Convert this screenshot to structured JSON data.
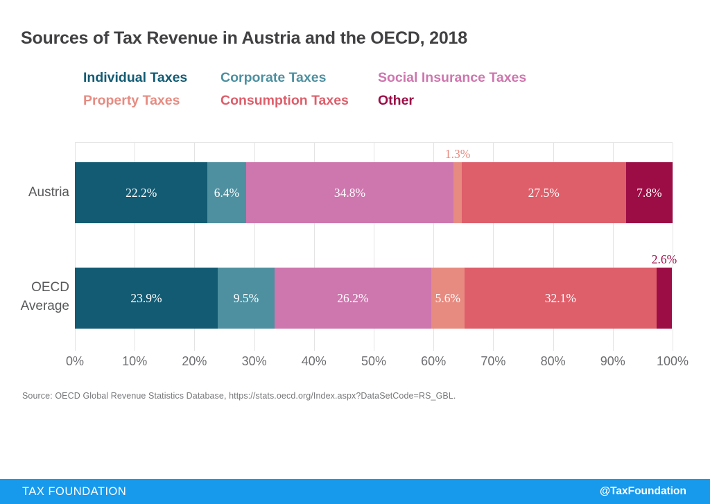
{
  "title": "Sources of Tax Revenue in Austria and the OECD, 2018",
  "chart_data": {
    "type": "bar",
    "variant": "horizontal-stacked",
    "title": "Sources of Tax Revenue in Austria and the OECD, 2018",
    "categories": [
      "Austria",
      "OECD Average"
    ],
    "series": [
      {
        "name": "Individual Taxes",
        "color": "#125B73",
        "values": [
          22.2,
          23.9
        ]
      },
      {
        "name": "Corporate Taxes",
        "color": "#4E90A0",
        "values": [
          6.4,
          9.5
        ]
      },
      {
        "name": "Social Insurance Taxes",
        "color": "#CE76AE",
        "values": [
          34.8,
          26.2
        ]
      },
      {
        "name": "Property Taxes",
        "color": "#E78B81",
        "values": [
          1.3,
          5.6
        ]
      },
      {
        "name": "Consumption Taxes",
        "color": "#DE5E6A",
        "values": [
          27.5,
          32.1
        ]
      },
      {
        "name": "Other",
        "color": "#9C0D45",
        "values": [
          7.8,
          2.6
        ]
      }
    ],
    "x_ticks": [
      "0%",
      "10%",
      "20%",
      "30%",
      "40%",
      "50%",
      "60%",
      "70%",
      "80%",
      "90%",
      "100%"
    ],
    "xlim": [
      0,
      100
    ],
    "value_suffix": "%",
    "small_label_threshold": 4,
    "grid": true,
    "legend_position": "top",
    "bar_value_labels_inside_color": "#ffffff"
  },
  "source": "Source: OECD Global Revenue Statistics Database, https://stats.oecd.org/Index.aspx?DataSetCode=RS_GBL.",
  "footer": {
    "brand": "TAX FOUNDATION",
    "handle": "@TaxFoundation",
    "bar_color": "#1799EC"
  }
}
